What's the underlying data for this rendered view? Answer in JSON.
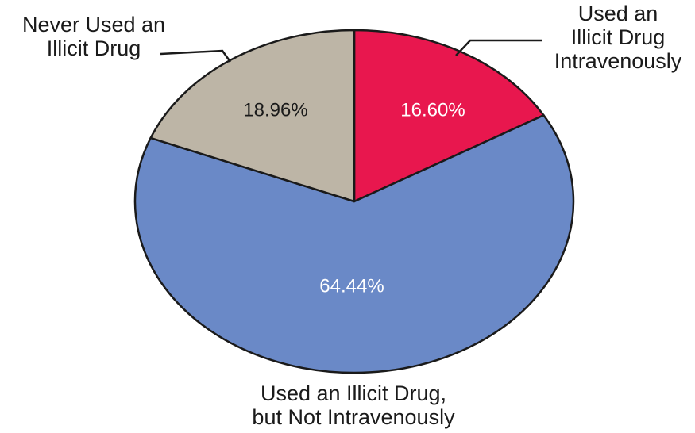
{
  "chart_data": {
    "type": "pie",
    "title": "",
    "slices": [
      {
        "label_lines": [
          "Used an",
          "Illicit Drug",
          "Intravenously"
        ],
        "value": 16.6,
        "value_label": "16.60%",
        "color": "#e8174e",
        "value_label_color": "#ffffff"
      },
      {
        "label_lines": [
          "Used an Illicit Drug,",
          "but Not Intravenously"
        ],
        "value": 64.44,
        "value_label": "64.44%",
        "color": "#6a89c7",
        "value_label_color": "#ffffff"
      },
      {
        "label_lines": [
          "Never Used an",
          "Illicit Drug"
        ],
        "value": 18.96,
        "value_label": "18.96%",
        "color": "#bdb5a6",
        "value_label_color": "#1a1a1a"
      }
    ],
    "start_angle_deg": 0,
    "direction": "clockwise",
    "legend": "none"
  }
}
